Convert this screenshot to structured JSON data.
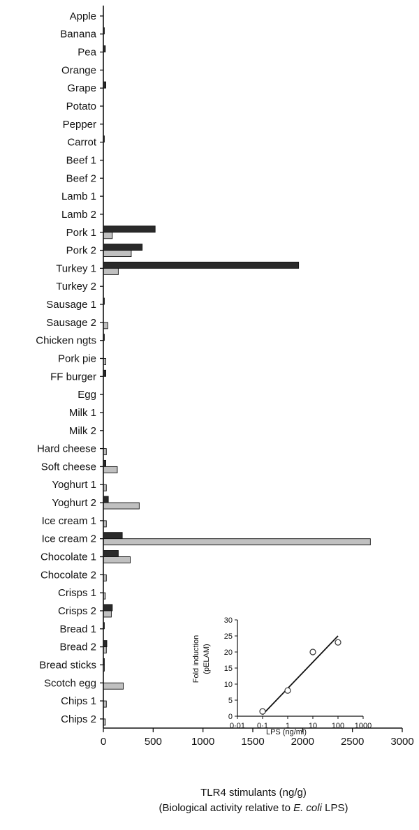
{
  "chart_data": [
    {
      "type": "bar",
      "orientation": "horizontal",
      "categories": [
        "Apple",
        "Banana",
        "Pea",
        "Orange",
        "Grape",
        "Potato",
        "Pepper",
        "Carrot",
        "Beef 1",
        "Beef 2",
        "Lamb 1",
        "Lamb 2",
        "Pork 1",
        "Pork 2",
        "Turkey 1",
        "Turkey 2",
        "Sausage 1",
        "Sausage 2",
        "Chicken ngts",
        "Pork pie",
        "FF burger",
        "Egg",
        "Milk 1",
        "Milk 2",
        "Hard cheese",
        "Soft cheese",
        "Yoghurt 1",
        "Yoghurt 2",
        "Ice cream 1",
        "Ice cream 2",
        "Chocolate 1",
        "Chocolate 2",
        "Crisps 1",
        "Crisps 2",
        "Bread 1",
        "Bread 2",
        "Bread sticks",
        "Scotch egg",
        "Chips 1",
        "Chips 2"
      ],
      "series": [
        {
          "color": "#2a2a2a",
          "values": [
            0,
            10,
            20,
            0,
            25,
            0,
            0,
            10,
            0,
            0,
            0,
            0,
            520,
            390,
            1960,
            0,
            10,
            0,
            10,
            0,
            25,
            0,
            0,
            0,
            0,
            25,
            0,
            50,
            0,
            190,
            150,
            0,
            0,
            90,
            10,
            35,
            10,
            0,
            0,
            0
          ]
        },
        {
          "color": "#c0c0c0",
          "values": [
            0,
            0,
            0,
            0,
            0,
            0,
            0,
            0,
            0,
            0,
            0,
            0,
            90,
            280,
            150,
            0,
            0,
            45,
            0,
            25,
            0,
            0,
            0,
            0,
            30,
            140,
            30,
            360,
            30,
            2680,
            270,
            30,
            20,
            80,
            0,
            30,
            10,
            200,
            30,
            20
          ]
        }
      ],
      "xlim": [
        0,
        3000
      ],
      "xticks": [
        "0",
        "500",
        "1000",
        "1500",
        "2000",
        "2500",
        "3000"
      ],
      "xlabel_line1": "TLR4 stimulants (ng/g)",
      "xlabel_line2_pre": "(Biological activity relative to ",
      "xlabel_line2_em": "E. coli",
      "xlabel_line2_post": " LPS)"
    },
    {
      "type": "scatter",
      "inset": true,
      "x_scale": "log",
      "xlim": [
        0.01,
        1000
      ],
      "ylim": [
        0,
        30
      ],
      "xticks": [
        "0·01",
        "0·1",
        "1",
        "10",
        "100",
        "1000"
      ],
      "yticks": [
        "0",
        "5",
        "10",
        "15",
        "20",
        "25",
        "30"
      ],
      "points": [
        {
          "x": 0.1,
          "y": 1.5
        },
        {
          "x": 1,
          "y": 8
        },
        {
          "x": 10,
          "y": 20
        },
        {
          "x": 100,
          "y": 23
        }
      ],
      "fit_line": {
        "x": [
          0.1,
          100
        ],
        "y": [
          0.5,
          25
        ]
      },
      "xlabel": "LPS (ng/ml)",
      "ylabel_line1": "Fold induction",
      "ylabel_line2": "(pELAM)"
    }
  ]
}
